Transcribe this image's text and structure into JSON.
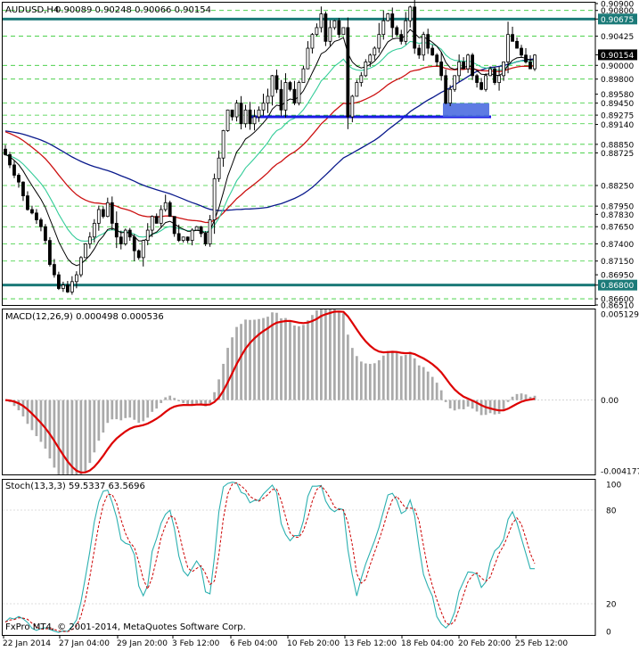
{
  "header": {
    "symbol_label": "AUDUSD,H4",
    "ohlc_label": "0.90089 0.90248 0.90066 0.90154"
  },
  "footer": {
    "copyright": "FxPro MT4, © 2001-2014, MetaQuotes Software Corp."
  },
  "colors": {
    "bull_candle": "#000000",
    "bear_candle": "#000000",
    "ma_fast": "#000000",
    "ma_green": "#33cc99",
    "ma_red": "#cc1111",
    "ma_blue": "#0a1a8c",
    "level_teal": "#1b7a78",
    "support_blue": "#1a1ae6",
    "zone_blue": "#4d6de0",
    "macd_signal": "#dd0000",
    "macd_hist": "#aaaaaa",
    "stoch_main": "#2bb0b0",
    "stoch_signal": "#cc0000",
    "grid_dash": "#33cc33"
  },
  "chart_data": [
    {
      "type": "candlestick",
      "title": "AUDUSD,H4",
      "ylim": [
        0.8651,
        0.909
      ],
      "y_ticks": [
        "0.90900",
        "0.90800",
        "0.90675",
        "0.90425",
        "0.90154",
        "0.90000",
        "0.89800",
        "0.89580",
        "0.89450",
        "0.89275",
        "0.89140",
        "0.88850",
        "0.88725",
        "0.88250",
        "0.87950",
        "0.87830",
        "0.87650",
        "0.87400",
        "0.87150",
        "0.86950",
        "0.86800",
        "0.86600",
        "0.86510"
      ],
      "price_marker": "0.90154",
      "resistance_level": 0.90675,
      "support_level": 0.868,
      "support_line": {
        "from": "6 Feb 04:00",
        "to": "20 Feb 20:00",
        "price": 0.8925
      },
      "dashed_levels": [
        0.908,
        0.90675,
        0.90425,
        0.9,
        0.898,
        0.8945,
        0.89275,
        0.8915,
        0.8885,
        0.88725,
        0.8825,
        0.8795,
        0.8765,
        0.874,
        0.8715,
        0.868,
        0.866
      ],
      "x_labels": [
        "22 Jan 2014",
        "27 Jan 04:00",
        "29 Jan 20:00",
        "3 Feb 12:00",
        "6 Feb 04:00",
        "10 Feb 20:00",
        "13 Feb 12:00",
        "18 Feb 04:00",
        "20 Feb 20:00",
        "25 Feb 12:00"
      ],
      "close": [
        0.887,
        0.8855,
        0.884,
        0.883,
        0.881,
        0.879,
        0.8785,
        0.8775,
        0.8765,
        0.8745,
        0.871,
        0.8695,
        0.8675,
        0.868,
        0.867,
        0.8685,
        0.8695,
        0.872,
        0.874,
        0.875,
        0.877,
        0.879,
        0.878,
        0.88,
        0.877,
        0.875,
        0.874,
        0.876,
        0.875,
        0.873,
        0.872,
        0.8745,
        0.876,
        0.878,
        0.877,
        0.879,
        0.88,
        0.878,
        0.8755,
        0.8745,
        0.875,
        0.8745,
        0.876,
        0.8765,
        0.8755,
        0.874,
        0.8775,
        0.8835,
        0.8865,
        0.8905,
        0.8935,
        0.8925,
        0.8945,
        0.8915,
        0.8935,
        0.8915,
        0.8925,
        0.8935,
        0.8945,
        0.8955,
        0.8985,
        0.8965,
        0.8935,
        0.8975,
        0.8965,
        0.8945,
        0.8975,
        0.8995,
        0.9025,
        0.9045,
        0.9055,
        0.9075,
        0.9035,
        0.9055,
        0.9065,
        0.9045,
        0.9055,
        0.8925,
        0.8955,
        0.8975,
        0.8985,
        0.9005,
        0.9015,
        0.9025,
        0.9045,
        0.9065,
        0.9075,
        0.9055,
        0.9045,
        0.9035,
        0.9065,
        0.9085,
        0.9025,
        0.9015,
        0.9045,
        0.9025,
        0.9015,
        0.9005,
        0.8985,
        0.8945,
        0.8965,
        0.8985,
        0.9005,
        0.8995,
        0.9015,
        0.8985,
        0.8975,
        0.8965,
        0.8985,
        0.8995,
        0.8975,
        0.8985,
        0.9005,
        0.9045,
        0.9035,
        0.9025,
        0.9015,
        0.9005,
        0.8995,
        0.9015
      ]
    },
    {
      "type": "macd",
      "label": "MACD(12,26,9) 0.000498 0.000536",
      "ylim": [
        -0.00417,
        0.00513
      ],
      "y_ticks": [
        "0.005129",
        "0.00",
        "-0.004177"
      ]
    },
    {
      "type": "stochastic",
      "label": "Stoch(13,3,3) 59.5337 63.5696",
      "ylim": [
        0,
        100
      ],
      "y_ticks": [
        "100",
        "80",
        "20",
        "0"
      ]
    }
  ]
}
